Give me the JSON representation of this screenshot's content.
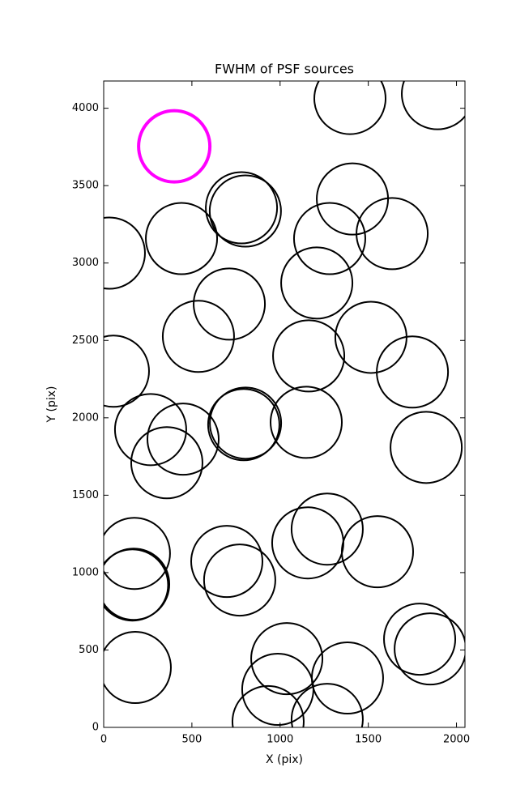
{
  "chart_data": {
    "type": "scatter",
    "title": "FWHM of PSF sources",
    "x_label": "X (pix)",
    "y_label": "Y (pix)",
    "xlim": [
      0,
      2048
    ],
    "ylim": [
      0,
      4176
    ],
    "xticks": [
      0,
      500,
      1000,
      1500,
      2000
    ],
    "yticks": [
      0,
      500,
      1000,
      1500,
      2000,
      2500,
      3000,
      3500,
      4000
    ],
    "series": [
      {
        "color": "#000000",
        "x": [
          1396,
          1892,
          32,
          441,
          781,
          803,
          1410,
          1281,
          1635,
          1208,
          712,
          537,
          1515,
          1162,
          1750,
          55,
          794,
          804,
          1148,
          266,
          450,
          358,
          1828,
          174,
          170,
          163,
          698,
          771,
          1157,
          1267,
          1552,
          1791,
          1851,
          179,
          1038,
          1382,
          987,
          932,
          1267
        ],
        "values": [
          4063,
          4094,
          3064,
          3158,
          3357,
          3336,
          3414,
          3158,
          3190,
          2871,
          2735,
          2526,
          2520,
          2400,
          2296,
          2301,
          1956,
          1966,
          1971,
          1924,
          1862,
          1710,
          1809,
          1124,
          925,
          920,
          1072,
          952,
          1192,
          1281,
          1135,
          570,
          507,
          387,
          444,
          319,
          246,
          37,
          52
        ]
      },
      {
        "color": "#ff00ff",
        "x": [
          400
        ],
        "values": [
          3754
        ]
      }
    ]
  }
}
